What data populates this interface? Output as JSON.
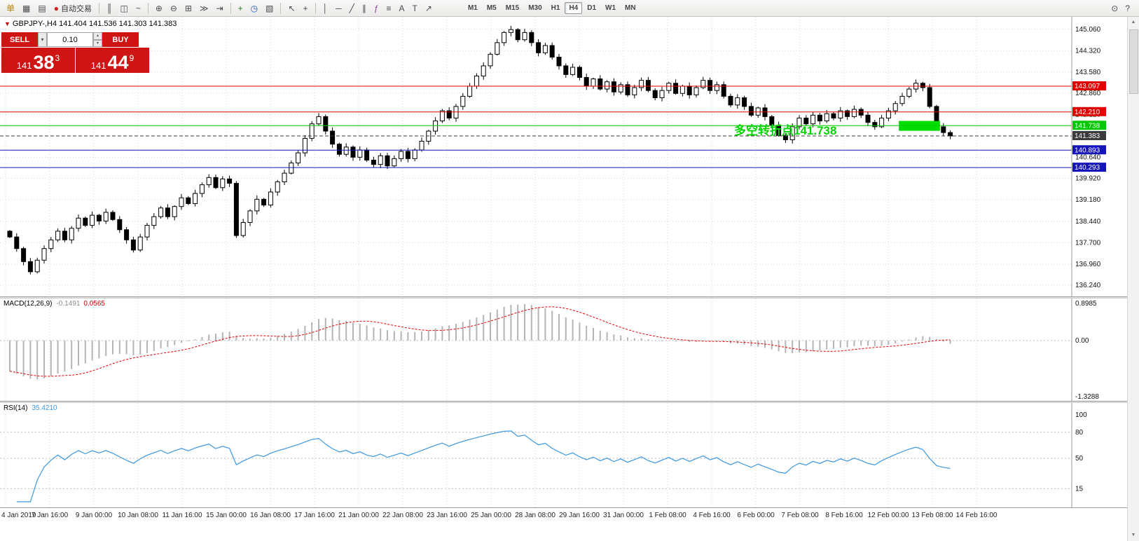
{
  "toolbar": {
    "items": [
      {
        "t": "btn",
        "name": "new-order",
        "glyph": "单",
        "color": "#b8860b"
      },
      {
        "t": "btn",
        "name": "chart-windows",
        "glyph": "▦"
      },
      {
        "t": "btn",
        "name": "profiles",
        "glyph": "▤"
      },
      {
        "t": "btn",
        "name": "auto-trading",
        "glyph": "●",
        "color": "#cc2222",
        "label": "自动交易"
      },
      {
        "t": "sep"
      },
      {
        "t": "btn",
        "name": "bar-chart-mode",
        "glyph": "║"
      },
      {
        "t": "btn",
        "name": "candlestick-mode",
        "glyph": "◫"
      },
      {
        "t": "btn",
        "name": "line-chart-mode",
        "glyph": "~"
      },
      {
        "t": "sep"
      },
      {
        "t": "btn",
        "name": "zoom-in",
        "glyph": "⊕"
      },
      {
        "t": "btn",
        "name": "zoom-out",
        "glyph": "⊖"
      },
      {
        "t": "btn",
        "name": "tile-windows",
        "glyph": "⊞"
      },
      {
        "t": "btn",
        "name": "auto-scroll",
        "glyph": "≫"
      },
      {
        "t": "btn",
        "name": "chart-shift",
        "glyph": "⇥"
      },
      {
        "t": "sep"
      },
      {
        "t": "btn",
        "name": "indicators-add",
        "glyph": "+",
        "color": "#1a7f1a"
      },
      {
        "t": "btn",
        "name": "periods",
        "glyph": "◷",
        "color": "#2255bb"
      },
      {
        "t": "btn",
        "name": "templates",
        "glyph": "▧"
      },
      {
        "t": "sep"
      },
      {
        "t": "btn",
        "name": "cursor",
        "glyph": "↖"
      },
      {
        "t": "btn",
        "name": "crosshair",
        "glyph": "+"
      },
      {
        "t": "sep"
      },
      {
        "t": "btn",
        "name": "vertical-line",
        "glyph": "│"
      },
      {
        "t": "btn",
        "name": "horizontal-line",
        "glyph": "─"
      },
      {
        "t": "btn",
        "name": "trendline",
        "glyph": "╱"
      },
      {
        "t": "btn",
        "name": "equidistant-channel",
        "glyph": "∥"
      },
      {
        "t": "btn",
        "name": "fibonacci-retracement",
        "glyph": "ƒ",
        "color": "#884499"
      },
      {
        "t": "btn",
        "name": "shapes",
        "glyph": "≡"
      },
      {
        "t": "btn",
        "name": "text",
        "glyph": "A"
      },
      {
        "t": "btn",
        "name": "text-label",
        "glyph": "T"
      },
      {
        "t": "btn",
        "name": "arrows",
        "glyph": "↗"
      }
    ],
    "timeframes": {
      "items": [
        "M1",
        "M5",
        "M15",
        "M30",
        "H1",
        "H4",
        "D1",
        "W1",
        "MN"
      ],
      "active": "H4"
    },
    "right_icons": [
      {
        "name": "search",
        "glyph": "⊙"
      },
      {
        "name": "help",
        "glyph": "?"
      }
    ]
  },
  "symbol_header": {
    "marker": "▼",
    "text": "GBPJPY-,H4  141.404 141.536 141.303 141.383"
  },
  "trade_panel": {
    "sell_label": "SELL",
    "buy_label": "BUY",
    "volume": "0.10",
    "dropdown_glyph": "▾",
    "spin_up_glyph": "▴",
    "spin_down_glyph": "▾",
    "bid": {
      "prefix": "141",
      "big": "38",
      "sup": "3"
    },
    "ask": {
      "prefix": "141",
      "big": "44",
      "sup": "9"
    },
    "panel_color": "#cf1414"
  },
  "scrollbar": {
    "up_glyph": "▲",
    "down_glyph": "▼"
  },
  "chart_data": {
    "type": "candlestick",
    "symbol": "GBPJPY-",
    "timeframe": "H4",
    "last_ohlc": {
      "open": 141.404,
      "high": 141.536,
      "low": 141.303,
      "close": 141.383
    },
    "price_axis": {
      "max": 145.49,
      "min": 135.85,
      "labels": [
        "145.060",
        "144.320",
        "143.580",
        "142.860",
        "142.120",
        "141.380",
        "140.640",
        "139.920",
        "139.180",
        "138.440",
        "137.700",
        "136.960",
        "136.240"
      ]
    },
    "time_axis": {
      "labels": [
        "4 Jan 2019",
        "7 Jan 16:00",
        "9 Jan 00:00",
        "10 Jan 08:00",
        "11 Jan 16:00",
        "15 Jan 00:00",
        "16 Jan 08:00",
        "17 Jan 16:00",
        "21 Jan 00:00",
        "22 Jan 08:00",
        "23 Jan 16:00",
        "25 Jan 00:00",
        "28 Jan 08:00",
        "29 Jan 16:00",
        "31 Jan 00:00",
        "1 Feb 08:00",
        "4 Feb 16:00",
        "6 Feb 00:00",
        "7 Feb 08:00",
        "8 Feb 16:00",
        "12 Feb 00:00",
        "13 Feb 08:00",
        "14 Feb 16:00"
      ]
    },
    "closes": [
      137.9,
      137.5,
      137.05,
      136.7,
      137.1,
      137.5,
      137.8,
      138.1,
      137.8,
      138.2,
      138.55,
      138.3,
      138.65,
      138.45,
      138.75,
      138.5,
      138.15,
      137.8,
      137.45,
      137.9,
      138.3,
      138.6,
      138.9,
      138.6,
      138.95,
      139.25,
      139.05,
      139.4,
      139.7,
      139.95,
      139.6,
      139.9,
      139.75,
      137.95,
      138.4,
      138.8,
      139.2,
      139.0,
      139.45,
      139.8,
      140.1,
      140.45,
      140.8,
      141.3,
      141.8,
      142.05,
      141.55,
      141.1,
      140.75,
      141.0,
      140.65,
      140.9,
      140.55,
      140.4,
      140.7,
      140.35,
      140.6,
      140.85,
      140.6,
      140.9,
      141.2,
      141.55,
      141.9,
      142.25,
      142.0,
      142.4,
      142.75,
      143.1,
      143.45,
      143.8,
      144.2,
      144.6,
      144.95,
      145.05,
      144.7,
      144.95,
      144.6,
      144.25,
      144.5,
      144.1,
      143.8,
      143.5,
      143.75,
      143.4,
      143.1,
      143.35,
      143.0,
      143.25,
      142.9,
      143.15,
      142.8,
      143.05,
      143.3,
      142.95,
      142.7,
      142.95,
      143.2,
      142.85,
      143.1,
      142.8,
      143.05,
      143.3,
      142.95,
      143.15,
      142.75,
      142.45,
      142.7,
      142.4,
      142.1,
      142.35,
      142.05,
      141.75,
      141.4,
      141.25,
      141.7,
      142.0,
      141.8,
      142.1,
      141.9,
      142.15,
      142.0,
      142.25,
      142.05,
      142.3,
      142.1,
      141.85,
      141.7,
      142.0,
      142.25,
      142.5,
      142.75,
      143.0,
      143.2,
      143.05,
      142.4,
      141.7,
      141.5,
      141.383
    ],
    "levels": [
      {
        "value": 143.097,
        "label": "143.097",
        "color": "#e00000",
        "style": "solid"
      },
      {
        "value": 142.21,
        "label": "142.210",
        "color": "#e00000",
        "style": "solid"
      },
      {
        "value": 141.738,
        "label": "141.738",
        "color": "#00c800",
        "style": "solid"
      },
      {
        "value": 141.383,
        "label": "141.383",
        "color": "#3b3b3b",
        "style": "dash",
        "is_current_price": true
      },
      {
        "value": 140.893,
        "label": "140.893",
        "color": "#1414b8",
        "style": "solid"
      },
      {
        "value": 140.293,
        "label": "140.293",
        "color": "#1414b8",
        "style": "solid"
      }
    ],
    "annotation": {
      "text": "多空转折点141.738",
      "color": "#00d400"
    },
    "highlight_rect": {
      "from_index": 129.5,
      "to_index": 135.5,
      "price_top": 141.9,
      "price_bottom": 141.56,
      "color": "#00dd00"
    },
    "indicators": [
      {
        "type": "MACD",
        "name_label": "MACD(12,26,9)",
        "value1": "-0.1491",
        "value2": "0.0565",
        "params": [
          12,
          26,
          9
        ],
        "range": {
          "max": 0.8985,
          "min": -1.3288
        },
        "scale_labels": [
          "0.8985",
          "0.00",
          "-1.3288"
        ],
        "histogram_color": "#b4b4b4",
        "signal_color": "#e00000"
      },
      {
        "type": "RSI",
        "name_label": "RSI(14)",
        "value": "35.4210",
        "params": [
          14
        ],
        "range": {
          "max": 100,
          "min": 0
        },
        "levels": [
          80,
          50,
          15
        ],
        "scale_labels": [
          "100",
          "80",
          "50",
          "15"
        ],
        "color": "#3b97e3"
      }
    ]
  }
}
